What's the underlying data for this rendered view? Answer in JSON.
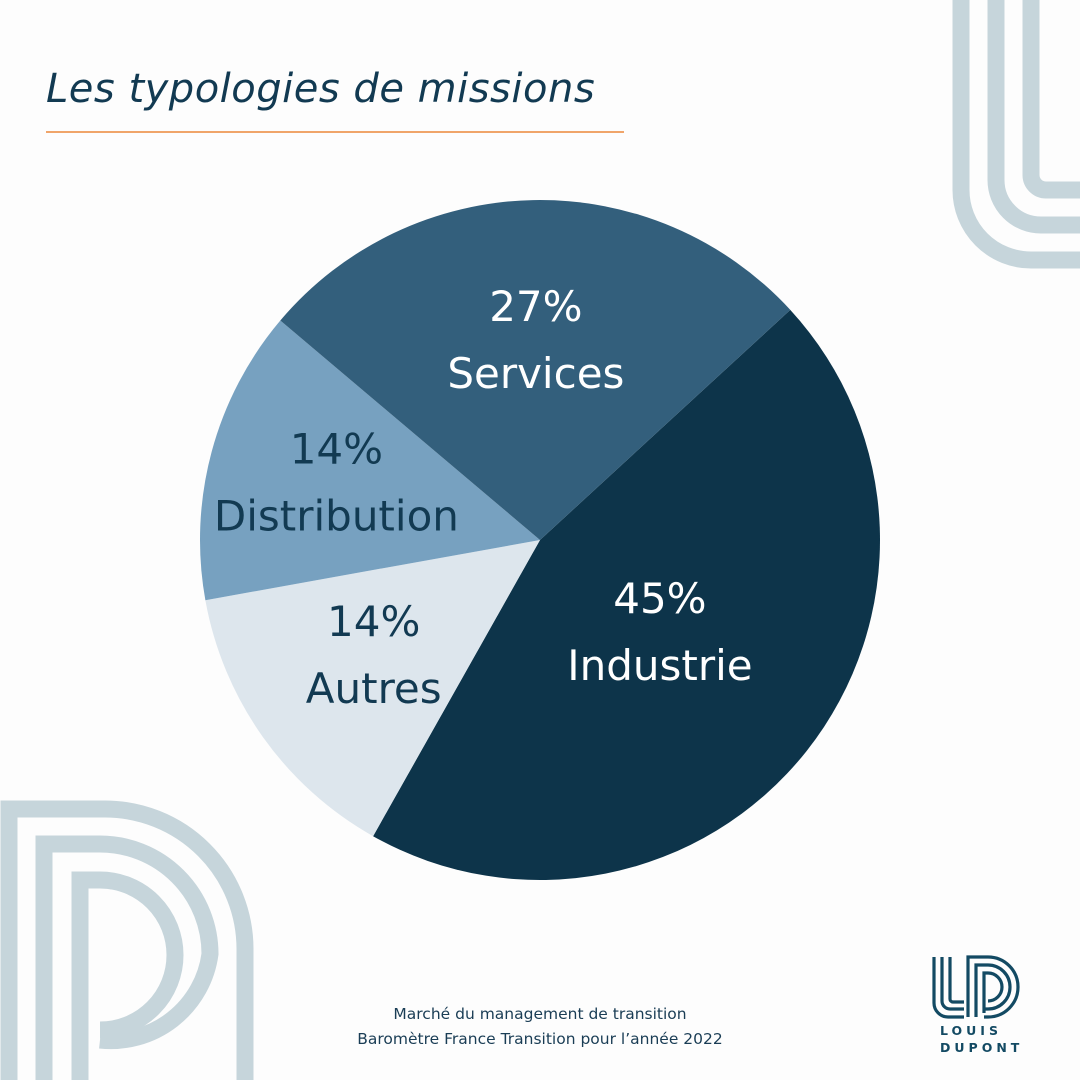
{
  "title": "Les typologies de missions",
  "footer": {
    "line1": "Marché du management de transition",
    "line2": "Baromètre France Transition pour l’année 2022"
  },
  "logo": {
    "line1": "LOUIS",
    "line2": "DUPONT"
  },
  "colors": {
    "accent": "#f0a56a",
    "decoration": "#c6d5db"
  },
  "chart_data": {
    "type": "pie",
    "title": "Les typologies de missions",
    "start_angle_deg": 47.4,
    "slices": [
      {
        "label": "Industrie",
        "value": 45,
        "display": "45%",
        "color": "#0d344a",
        "text_color": "#ffffff"
      },
      {
        "label": "Autres",
        "value": 14,
        "display": "14%",
        "color": "#dde6ed",
        "text_color": "#123a52"
      },
      {
        "label": "Distribution",
        "value": 14,
        "display": "14%",
        "color": "#77a1c0",
        "text_color": "#123a52"
      },
      {
        "label": "Services",
        "value": 27,
        "display": "27%",
        "color": "#335f7c",
        "text_color": "#ffffff"
      }
    ]
  }
}
